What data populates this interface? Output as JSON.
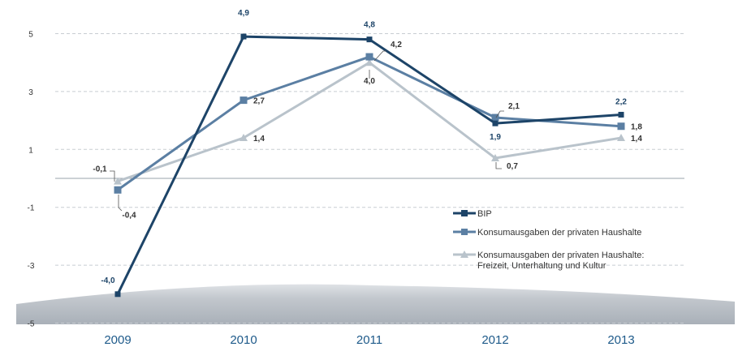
{
  "chart_data": {
    "type": "line",
    "categories": [
      "2009",
      "2010",
      "2011",
      "2012",
      "2013"
    ],
    "ylim": [
      -5,
      6
    ],
    "yticks": [
      "-5",
      "-3",
      "-1",
      "1",
      "3",
      "5"
    ],
    "grid": "dashed horizontal",
    "legend_position": "right-middle",
    "series": [
      {
        "name": "BIP",
        "color": "#1d4468",
        "marker": "square",
        "values": [
          -4.0,
          4.9,
          4.8,
          1.9,
          2.2
        ],
        "labels": [
          "-4,0",
          "4,9",
          "4,8",
          "1,9",
          "2,2"
        ]
      },
      {
        "name": "Konsumausgaben der privaten Haushalte",
        "color": "#5b7fa3",
        "marker": "square",
        "values": [
          -0.4,
          2.7,
          4.2,
          2.1,
          1.8
        ],
        "labels": [
          "-0,4",
          "2,7",
          "4,2",
          "2,1",
          "1,8"
        ]
      },
      {
        "name_line1": "Konsumausgaben der privaten Haushalte:",
        "name_line2": "Freizeit, Unterhaltung und Kultur",
        "color": "#b9c3cb",
        "marker": "triangle",
        "values": [
          -0.1,
          1.4,
          4.0,
          0.7,
          1.4
        ],
        "labels": [
          "-0,1",
          "1,4",
          "4,0",
          "0,7",
          "1,4"
        ]
      }
    ]
  }
}
